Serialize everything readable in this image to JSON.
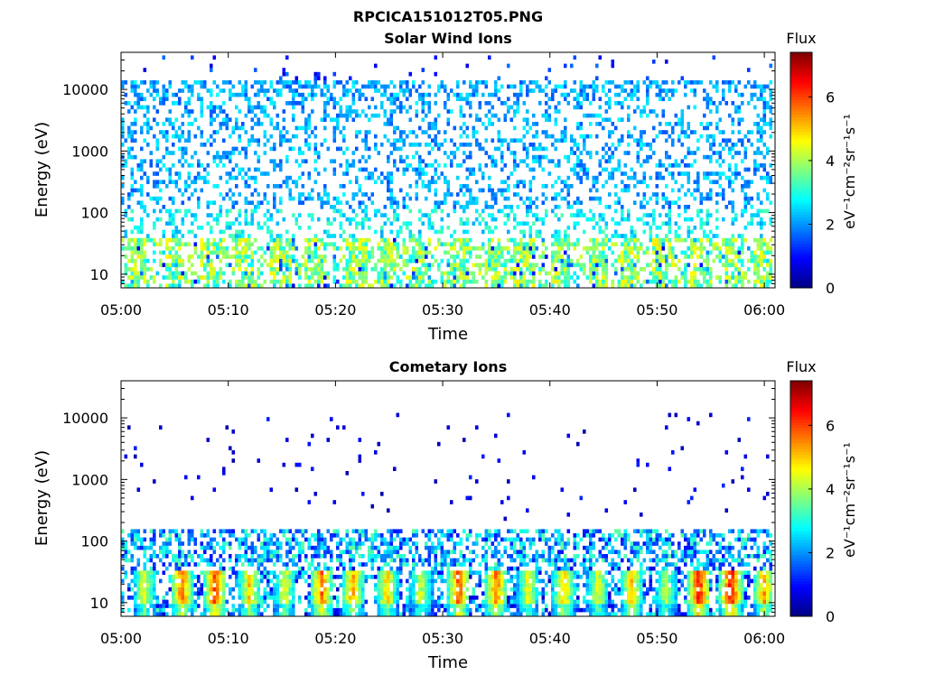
{
  "figure_title": "RPCICA151012T05.PNG",
  "colors": {
    "colormap": [
      "#00007f",
      "#0000ff",
      "#007fff",
      "#00ffff",
      "#7fff7f",
      "#ffff00",
      "#ff7f00",
      "#ff0000",
      "#7f0000"
    ],
    "frame": "#000000",
    "background": "#ffffff"
  },
  "chart_data": [
    {
      "type": "heatmap",
      "title": "Solar Wind Ions",
      "xlabel": "Time",
      "ylabel": "Energy (eV)",
      "x_range": [
        "05:00",
        "06:01"
      ],
      "x_ticks": [
        "05:00",
        "05:10",
        "05:20",
        "05:30",
        "05:40",
        "05:50",
        "06:00"
      ],
      "y_scale": "log",
      "ylim": [
        6,
        40000
      ],
      "y_ticks": [
        "10",
        "100",
        "1000",
        "10000"
      ],
      "colorbar": {
        "title": "Flux",
        "label": "eV⁻¹cm⁻²sr⁻¹s⁻¹",
        "range": [
          0,
          7.4
        ],
        "ticks": [
          "0",
          "2",
          "4",
          "6"
        ]
      },
      "features": {
        "background_band_energy_eV": [
          40,
          15000
        ],
        "background_band_flux": [
          1.5,
          2.8
        ],
        "low_energy_flux": [
          2.5,
          4.5
        ],
        "low_energy_bursts_minutes": [
          1.5,
          5,
          8.5,
          11.5,
          15,
          18,
          22,
          25,
          28,
          31.5,
          35,
          37.5,
          41,
          44.5,
          47.5,
          50.5,
          54,
          57,
          60
        ]
      }
    },
    {
      "type": "heatmap",
      "title": "Cometary Ions",
      "xlabel": "Time",
      "ylabel": "Energy (eV)",
      "x_range": [
        "05:00",
        "06:01"
      ],
      "x_ticks": [
        "05:00",
        "05:10",
        "05:20",
        "05:30",
        "05:40",
        "05:50",
        "06:00"
      ],
      "y_scale": "log",
      "ylim": [
        6,
        40000
      ],
      "y_ticks": [
        "10",
        "100",
        "1000",
        "10000"
      ],
      "colorbar": {
        "title": "Flux",
        "label": "eV⁻¹cm⁻²sr⁻¹s⁻¹",
        "range": [
          0,
          7.4
        ],
        "ticks": [
          "0",
          "2",
          "4",
          "6"
        ]
      },
      "features": {
        "sparse_energy_eV": [
          200,
          12000
        ],
        "sparse_flux": [
          0.3,
          1.2
        ],
        "band_energy_eV": [
          40,
          150
        ],
        "band_flux": [
          1,
          3.5
        ],
        "hot_energy_eV": [
          10,
          35
        ],
        "hot_bursts": [
          {
            "t_min": 2.2,
            "peak": 5.0
          },
          {
            "t_min": 5.7,
            "peak": 6.2
          },
          {
            "t_min": 8.8,
            "peak": 6.6
          },
          {
            "t_min": 12.0,
            "peak": 5.5
          },
          {
            "t_min": 15.3,
            "peak": 5.0
          },
          {
            "t_min": 18.7,
            "peak": 6.3
          },
          {
            "t_min": 21.6,
            "peak": 5.8
          },
          {
            "t_min": 24.8,
            "peak": 5.4
          },
          {
            "t_min": 28.0,
            "peak": 4.8
          },
          {
            "t_min": 31.5,
            "peak": 6.4
          },
          {
            "t_min": 35.0,
            "peak": 6.2
          },
          {
            "t_min": 38.0,
            "peak": 5.0
          },
          {
            "t_min": 41.3,
            "peak": 5.6
          },
          {
            "t_min": 44.5,
            "peak": 5.0
          },
          {
            "t_min": 47.6,
            "peak": 5.7
          },
          {
            "t_min": 50.8,
            "peak": 4.6
          },
          {
            "t_min": 53.9,
            "peak": 6.9
          },
          {
            "t_min": 56.9,
            "peak": 7.0
          },
          {
            "t_min": 60.0,
            "peak": 5.8
          }
        ]
      }
    }
  ]
}
